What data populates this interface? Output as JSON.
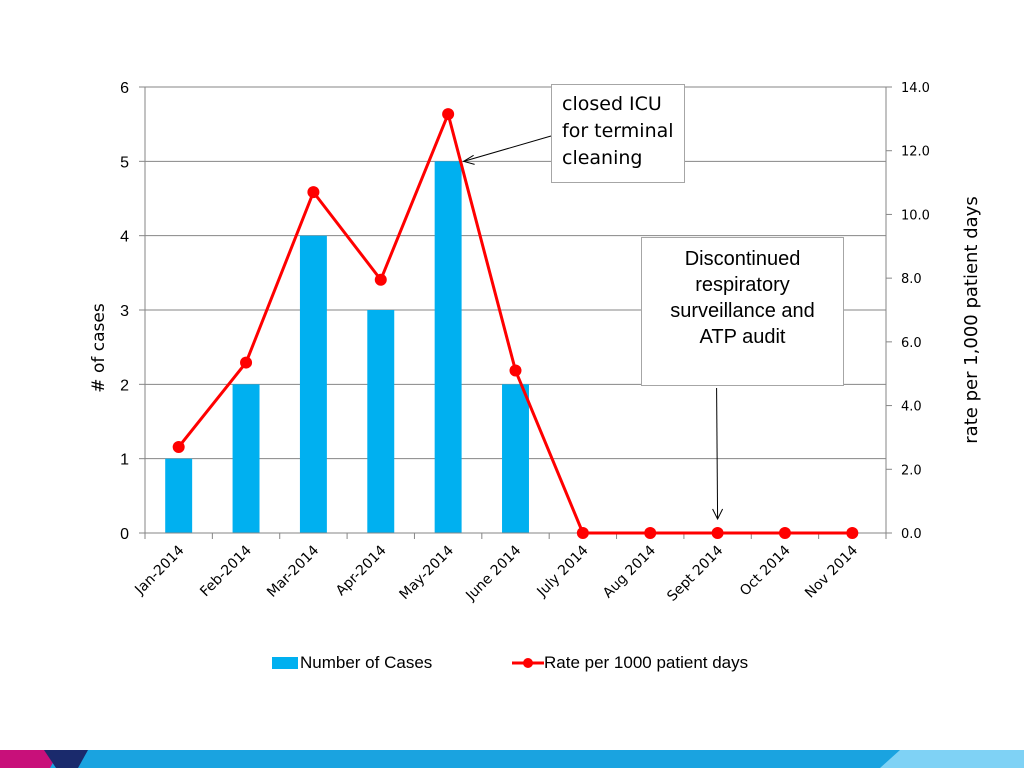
{
  "chart_data": {
    "type": "bar",
    "categories": [
      "Jan-2014",
      "Feb-2014",
      "Mar-2014",
      "Apr-2014",
      "May-2014",
      "June 2014",
      "July 2014",
      "Aug 2014",
      "Sept 2014",
      "Oct 2014",
      "Nov 2014"
    ],
    "series": [
      {
        "name": "Number of Cases",
        "type": "bar",
        "axis": "left",
        "values": [
          1,
          2,
          4,
          3,
          5,
          2,
          0,
          0,
          0,
          0,
          0
        ],
        "color": "#00b0f0"
      },
      {
        "name": "Rate per 1000 patient days",
        "type": "line",
        "axis": "right",
        "values": [
          2.7,
          5.35,
          10.7,
          7.95,
          13.15,
          5.1,
          0.0,
          0.0,
          0.0,
          0.0,
          0.0
        ],
        "color": "#ff0000"
      }
    ],
    "ylabel": "# of cases",
    "y2label": "rate per 1,000 patient days",
    "ylim": [
      0,
      6
    ],
    "y2lim": [
      0,
      14
    ],
    "yticks": [
      "0",
      "1",
      "2",
      "3",
      "4",
      "5",
      "6"
    ],
    "y2ticks": [
      "0.0",
      "2.0",
      "4.0",
      "6.0",
      "8.0",
      "10.0",
      "12.0",
      "14.0"
    ],
    "grid": true,
    "legend": "bottom",
    "annotations": [
      {
        "text": "closed ICU for terminal cleaning",
        "points_to": "May-2014"
      },
      {
        "text": "Discontinued respiratory surveillance and ATP audit",
        "points_to": "Sept 2014"
      }
    ]
  },
  "annotations": {
    "icu_lines": [
      "closed ICU",
      "for terminal",
      "cleaning"
    ],
    "disc_lines": [
      "Discontinued",
      "respiratory",
      "surveillance and",
      "ATP audit"
    ]
  },
  "legend": {
    "cases": "Number of Cases",
    "rate": "Rate per 1000 patient days"
  },
  "colors": {
    "bar": "#00b0f0",
    "line": "#ff0000",
    "grid": "#868686",
    "footer_dark": "#1a2a6c",
    "footer_pink": "#c8107a",
    "footer_blue": "#1aa3e0",
    "footer_light": "#7fd2f5"
  }
}
